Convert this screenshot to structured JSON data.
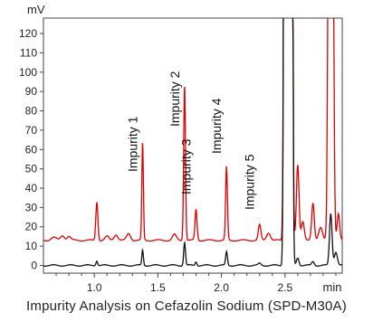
{
  "chart_data": {
    "type": "line",
    "y_unit": "mV",
    "x_unit": "min",
    "caption": "Impurity Analysis on Cefazolin Sodium (SPD-M30A)",
    "xlim": [
      0.6,
      2.95
    ],
    "ylim": [
      -4,
      128
    ],
    "x_ticks": [
      1.0,
      1.5,
      2.0,
      2.5
    ],
    "x_tick_labels": [
      "1.0",
      "1.5",
      "2.0",
      "2.5"
    ],
    "y_ticks": [
      0,
      10,
      20,
      30,
      40,
      50,
      60,
      70,
      80,
      90,
      100,
      110,
      120
    ],
    "y_tick_labels": [
      "0",
      "10",
      "20",
      "30",
      "40",
      "50",
      "60",
      "70",
      "80",
      "90",
      "100",
      "110",
      "120"
    ],
    "grid": false,
    "legend": "none",
    "annotations": [
      {
        "text": "Impurity 1",
        "x": 1.38
      },
      {
        "text": "Impurity 2",
        "x": 1.71
      },
      {
        "text": "Impurity 3",
        "x": 1.8
      },
      {
        "text": "Impurity 4",
        "x": 2.04
      },
      {
        "text": "Impurity 5",
        "x": 2.3
      }
    ],
    "series": [
      {
        "color": "#e00000",
        "baseline": 13,
        "peaks": [
          {
            "x": 0.68,
            "height": 1.5,
            "width": 0.02
          },
          {
            "x": 0.75,
            "height": 2.5,
            "width": 0.015
          },
          {
            "x": 0.8,
            "height": 2.0,
            "width": 0.015
          },
          {
            "x": 1.02,
            "height": 20,
            "width": 0.008
          },
          {
            "x": 1.1,
            "height": 2,
            "width": 0.015
          },
          {
            "x": 1.17,
            "height": 3,
            "width": 0.015
          },
          {
            "x": 1.27,
            "height": 3.5,
            "width": 0.015
          },
          {
            "x": 1.38,
            "height": 51,
            "width": 0.006
          },
          {
            "x": 1.63,
            "height": 3,
            "width": 0.015
          },
          {
            "x": 1.71,
            "height": 81,
            "width": 0.007
          },
          {
            "x": 1.8,
            "height": 16,
            "width": 0.008
          },
          {
            "x": 2.04,
            "height": 38,
            "width": 0.007
          },
          {
            "x": 2.3,
            "height": 8,
            "width": 0.01
          },
          {
            "x": 2.37,
            "height": 4,
            "width": 0.015
          },
          {
            "x": 2.505,
            "height": 1000,
            "width": 0.009
          },
          {
            "x": 2.545,
            "height": 1000,
            "width": 0.009
          },
          {
            "x": 2.6,
            "height": 39,
            "width": 0.01
          },
          {
            "x": 2.64,
            "height": 10,
            "width": 0.012
          },
          {
            "x": 2.72,
            "height": 19,
            "width": 0.01
          },
          {
            "x": 2.78,
            "height": 7,
            "width": 0.015
          },
          {
            "x": 2.86,
            "height": 1000,
            "width": 0.012
          },
          {
            "x": 2.92,
            "height": 14,
            "width": 0.01
          }
        ]
      },
      {
        "color": "#111111",
        "baseline": 0,
        "peaks": [
          {
            "x": 1.02,
            "height": 2.5,
            "width": 0.007
          },
          {
            "x": 1.38,
            "height": 8,
            "width": 0.006
          },
          {
            "x": 1.71,
            "height": 12,
            "width": 0.007
          },
          {
            "x": 1.8,
            "height": 2,
            "width": 0.007
          },
          {
            "x": 2.04,
            "height": 7,
            "width": 0.007
          },
          {
            "x": 2.3,
            "height": 1,
            "width": 0.01
          },
          {
            "x": 2.505,
            "height": 1000,
            "width": 0.009
          },
          {
            "x": 2.545,
            "height": 1000,
            "width": 0.009
          },
          {
            "x": 2.6,
            "height": 4,
            "width": 0.01
          },
          {
            "x": 2.72,
            "height": 2,
            "width": 0.01
          },
          {
            "x": 2.86,
            "height": 27,
            "width": 0.01
          },
          {
            "x": 2.9,
            "height": 7,
            "width": 0.012
          }
        ]
      }
    ]
  }
}
